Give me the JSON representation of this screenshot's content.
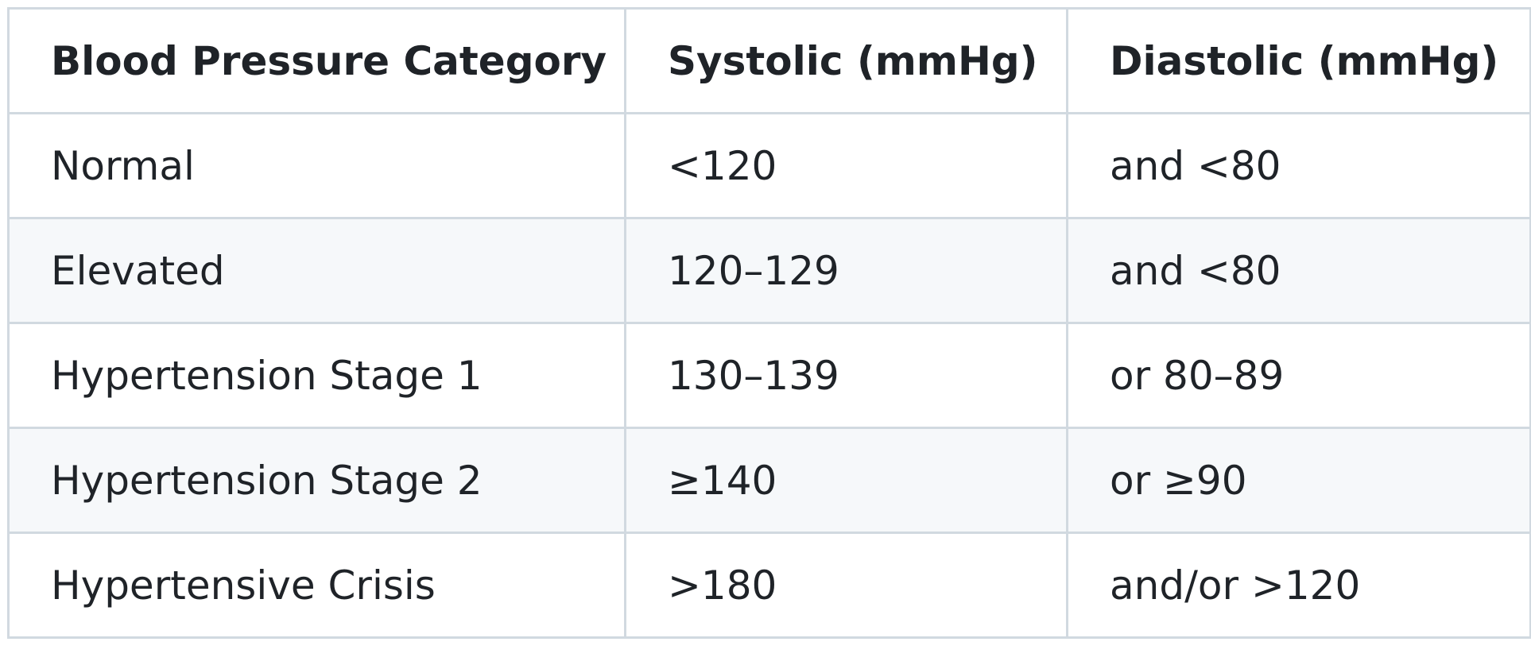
{
  "table": {
    "header": [
      "Blood Pressure Category",
      "Systolic (mmHg)",
      "Diastolic (mmHg)"
    ],
    "rows": [
      [
        "Normal",
        "<120",
        "and <80"
      ],
      [
        "Elevated",
        "120–129",
        "and <80"
      ],
      [
        "Hypertension Stage 1",
        "130–139",
        "or 80–89"
      ],
      [
        "Hypertension Stage 2",
        "≥140",
        "or ≥90"
      ],
      [
        "Hypertensive Crisis",
        ">180",
        "and/or >120"
      ]
    ]
  }
}
